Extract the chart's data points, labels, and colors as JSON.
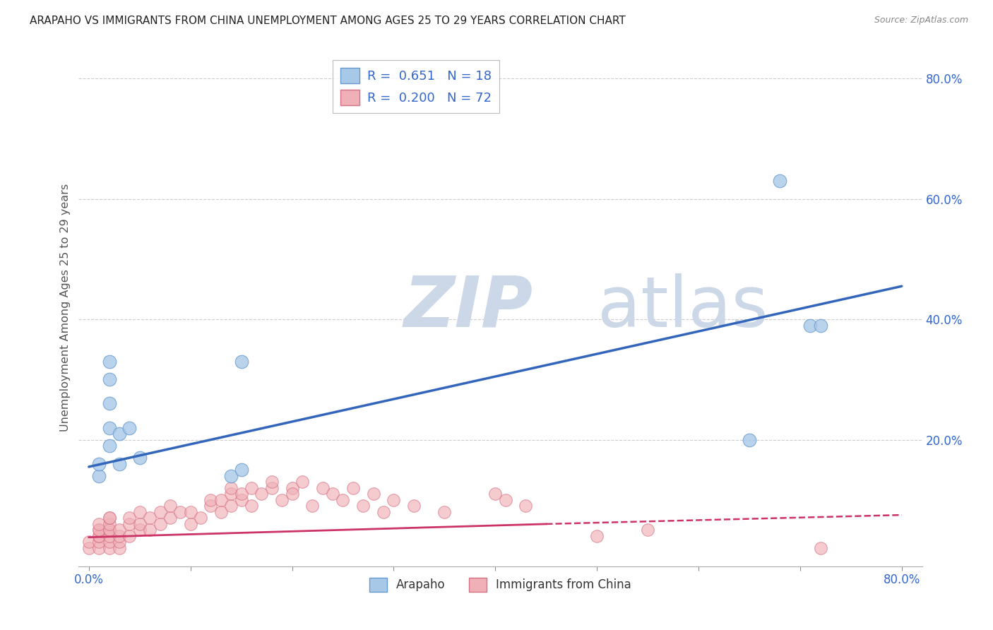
{
  "title": "ARAPAHO VS IMMIGRANTS FROM CHINA UNEMPLOYMENT AMONG AGES 25 TO 29 YEARS CORRELATION CHART",
  "source": "Source: ZipAtlas.com",
  "ylabel": "Unemployment Among Ages 25 to 29 years",
  "xlim": [
    0.0,
    0.8
  ],
  "ylim": [
    -0.01,
    0.85
  ],
  "xticks": [
    0.0,
    0.1,
    0.2,
    0.3,
    0.4,
    0.5,
    0.6,
    0.7,
    0.8
  ],
  "yticks": [
    0.2,
    0.4,
    0.6,
    0.8
  ],
  "ytick_labels": [
    "20.0%",
    "40.0%",
    "60.0%",
    "80.0%"
  ],
  "xtick_labels_show": [
    "0.0%",
    "80.0%"
  ],
  "arapaho_color": "#a8c8e8",
  "arapaho_edge": "#6699cc",
  "china_color": "#f0b0b8",
  "china_edge": "#d47080",
  "trend_blue": "#3366bb",
  "trend_pink_solid": "#cc3366",
  "trend_pink_dashed": "#cc3366",
  "R_arapaho": 0.651,
  "N_arapaho": 18,
  "R_china": 0.2,
  "N_china": 72,
  "arapaho_x": [
    0.01,
    0.01,
    0.02,
    0.02,
    0.02,
    0.02,
    0.02,
    0.03,
    0.03,
    0.04,
    0.05,
    0.14,
    0.15,
    0.15,
    0.65,
    0.68,
    0.71,
    0.72
  ],
  "arapaho_y": [
    0.14,
    0.16,
    0.19,
    0.22,
    0.26,
    0.3,
    0.33,
    0.16,
    0.21,
    0.22,
    0.17,
    0.14,
    0.15,
    0.33,
    0.2,
    0.63,
    0.39,
    0.39
  ],
  "china_x": [
    0.0,
    0.0,
    0.01,
    0.01,
    0.01,
    0.01,
    0.01,
    0.01,
    0.01,
    0.02,
    0.02,
    0.02,
    0.02,
    0.02,
    0.02,
    0.02,
    0.02,
    0.03,
    0.03,
    0.03,
    0.03,
    0.04,
    0.04,
    0.04,
    0.05,
    0.05,
    0.05,
    0.06,
    0.06,
    0.07,
    0.07,
    0.08,
    0.08,
    0.09,
    0.1,
    0.1,
    0.11,
    0.12,
    0.12,
    0.13,
    0.13,
    0.14,
    0.14,
    0.14,
    0.15,
    0.15,
    0.16,
    0.16,
    0.17,
    0.18,
    0.18,
    0.19,
    0.2,
    0.2,
    0.21,
    0.22,
    0.23,
    0.24,
    0.25,
    0.26,
    0.27,
    0.28,
    0.29,
    0.3,
    0.32,
    0.35,
    0.4,
    0.41,
    0.43,
    0.5,
    0.55,
    0.72
  ],
  "china_y": [
    0.02,
    0.03,
    0.02,
    0.03,
    0.04,
    0.04,
    0.05,
    0.05,
    0.06,
    0.02,
    0.03,
    0.04,
    0.05,
    0.05,
    0.06,
    0.07,
    0.07,
    0.02,
    0.03,
    0.04,
    0.05,
    0.04,
    0.06,
    0.07,
    0.05,
    0.06,
    0.08,
    0.05,
    0.07,
    0.06,
    0.08,
    0.07,
    0.09,
    0.08,
    0.06,
    0.08,
    0.07,
    0.09,
    0.1,
    0.08,
    0.1,
    0.09,
    0.11,
    0.12,
    0.1,
    0.11,
    0.09,
    0.12,
    0.11,
    0.12,
    0.13,
    0.1,
    0.12,
    0.11,
    0.13,
    0.09,
    0.12,
    0.11,
    0.1,
    0.12,
    0.09,
    0.11,
    0.08,
    0.1,
    0.09,
    0.08,
    0.11,
    0.1,
    0.09,
    0.04,
    0.05,
    0.02
  ],
  "trend_blue_x0": 0.0,
  "trend_blue_y0": 0.155,
  "trend_blue_x1": 0.8,
  "trend_blue_y1": 0.455,
  "trend_pink_x0": 0.0,
  "trend_pink_y0": 0.038,
  "trend_pink_x1_solid": 0.45,
  "trend_pink_y1_solid": 0.06,
  "trend_pink_x1_dashed": 0.8,
  "trend_pink_y1_dashed": 0.075,
  "background_color": "#ffffff",
  "grid_color": "#cccccc",
  "watermark_zip": "ZIP",
  "watermark_atlas": "atlas",
  "watermark_color": "#ccd8e8",
  "title_color": "#222222",
  "axis_label_color": "#555555",
  "tick_color": "#3366cc",
  "legend_color": "#3366cc"
}
